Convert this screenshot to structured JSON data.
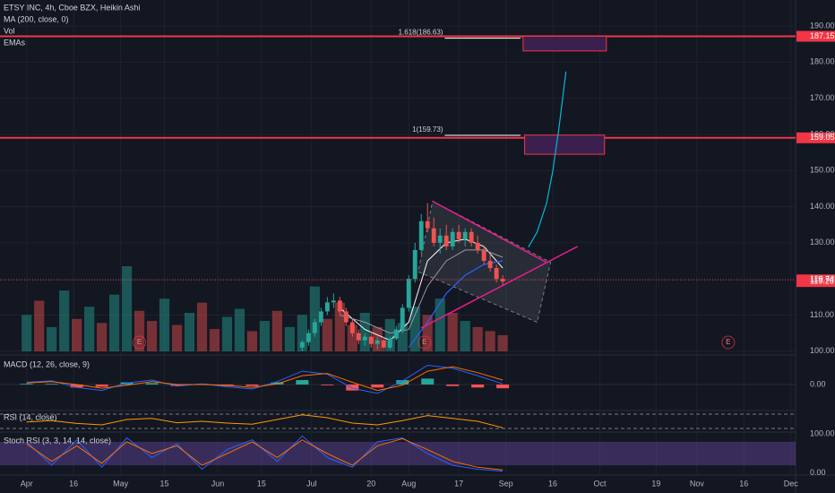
{
  "chart_data": {
    "type": "candlestick",
    "title": "ETSY INC, 4h, Cboe BZX, Heikin Ashi",
    "indicator_labels": [
      "MA (200, close, 0)",
      "Vol",
      "EMAs"
    ],
    "xlim": [
      -8.5,
      245.5
    ],
    "xticks": [
      {
        "value": 0,
        "label": "Apr"
      },
      {
        "value": 15,
        "label": "16"
      },
      {
        "value": 30,
        "label": "May"
      },
      {
        "value": 44,
        "label": "15"
      },
      {
        "value": 61,
        "label": "Jun"
      },
      {
        "value": 75,
        "label": "15"
      },
      {
        "value": 91,
        "label": "Jul"
      },
      {
        "value": 110,
        "label": "20"
      },
      {
        "value": 122,
        "label": "Aug"
      },
      {
        "value": 138,
        "label": "17"
      },
      {
        "value": 153,
        "label": "Sep"
      },
      {
        "value": 168,
        "label": "16"
      },
      {
        "value": 183,
        "label": "Oct"
      },
      {
        "value": 201,
        "label": "19"
      },
      {
        "value": 214,
        "label": "Nov"
      },
      {
        "value": 229,
        "label": "16"
      },
      {
        "value": 244,
        "label": "Dec"
      }
    ],
    "ylim": [
      99.2,
      197.2
    ],
    "yticks": [
      {
        "value": 100,
        "label": "100.00"
      },
      {
        "value": 110,
        "label": "110.00"
      },
      {
        "value": 120,
        "label": "120.00"
      },
      {
        "value": 130,
        "label": "130.00"
      },
      {
        "value": 140,
        "label": "140.00"
      },
      {
        "value": 150,
        "label": "150.00"
      },
      {
        "value": 160,
        "label": "160.00"
      },
      {
        "value": 170,
        "label": "170.00"
      },
      {
        "value": 180,
        "label": "180.00"
      },
      {
        "value": 190,
        "label": "190.00"
      }
    ],
    "grid": true,
    "up_color": "#26a69a",
    "down_color": "#ef5350",
    "candles": {
      "x": [
        88,
        90,
        92,
        94,
        96,
        98,
        100,
        102,
        104,
        106,
        108,
        110,
        112,
        114,
        116,
        118,
        120,
        122,
        124,
        126,
        128,
        130,
        132,
        134,
        136,
        138,
        140,
        142,
        144,
        146,
        148,
        150,
        152
      ],
      "open": [
        101,
        102.5,
        105,
        108,
        111,
        113.5,
        114,
        111,
        108,
        105,
        103,
        104,
        102,
        103,
        101,
        103.5,
        106,
        112,
        120,
        128,
        136,
        134,
        130,
        132,
        129,
        133,
        131,
        133,
        130,
        128,
        125,
        123,
        120
      ],
      "high": [
        103,
        106,
        109,
        112,
        115,
        116,
        115,
        112,
        109,
        106,
        105,
        105,
        104,
        104,
        104,
        107,
        113,
        121,
        130,
        138,
        141,
        137,
        134,
        135,
        134,
        135,
        134,
        134,
        132,
        129,
        127,
        124,
        121
      ],
      "low": [
        100,
        101.5,
        104,
        107,
        110,
        112,
        110,
        107,
        104,
        102,
        101.5,
        101,
        100.5,
        100,
        100.5,
        103,
        105,
        111,
        119,
        127,
        133,
        129,
        127,
        128,
        128,
        130,
        129,
        129,
        127,
        124,
        122,
        119,
        118
      ],
      "close": [
        102.5,
        105,
        108,
        111,
        113.5,
        114,
        111,
        108,
        105,
        103,
        104,
        102,
        103,
        101,
        103.5,
        106,
        112,
        120,
        128,
        136,
        134,
        130,
        132,
        129,
        133,
        131,
        133,
        130,
        128,
        125,
        123,
        120,
        119.3
      ]
    },
    "volume": {
      "x": [
        0,
        4,
        8,
        12,
        16,
        20,
        24,
        28,
        32,
        36,
        40,
        44,
        48,
        52,
        56,
        60,
        64,
        68,
        72,
        76,
        80,
        84,
        88,
        92,
        96,
        100,
        104,
        108,
        112,
        116,
        120,
        124,
        128,
        132,
        136,
        140,
        144,
        148,
        152
      ],
      "values": [
        1.8,
        2.5,
        1.2,
        3.0,
        1.6,
        2.2,
        1.4,
        2.8,
        4.2,
        2.0,
        1.5,
        2.6,
        1.3,
        1.9,
        2.4,
        1.1,
        1.7,
        2.1,
        1.0,
        1.5,
        2.0,
        1.2,
        1.8,
        3.2,
        1.6,
        2.4,
        1.3,
        1.9,
        1.2,
        1.6,
        1.4,
        2.2,
        1.8,
        2.6,
        1.9,
        1.5,
        1.2,
        1.0,
        0.8
      ],
      "up": [
        true,
        false,
        true,
        true,
        false,
        true,
        false,
        true,
        true,
        false,
        false,
        true,
        false,
        true,
        false,
        false,
        true,
        true,
        false,
        true,
        false,
        true,
        true,
        true,
        false,
        false,
        false,
        true,
        false,
        true,
        true,
        true,
        false,
        true,
        false,
        true,
        false,
        false,
        false
      ]
    },
    "ma": {
      "color": "#2962ff",
      "x": [
        122,
        128,
        134,
        140,
        146,
        152
      ],
      "values": [
        101,
        108,
        116,
        121,
        124,
        125
      ]
    },
    "emas": [
      {
        "color": "#ffffff",
        "x": [
          100,
          108,
          116,
          122,
          128,
          134,
          140,
          146,
          152
        ],
        "values": [
          112,
          106,
          103,
          108,
          125,
          130,
          131,
          129,
          123
        ]
      },
      {
        "color": "#9598a1",
        "x": [
          100,
          108,
          116,
          122,
          128,
          134,
          140,
          146,
          152
        ],
        "values": [
          110,
          108,
          105,
          106,
          118,
          125,
          128,
          128,
          126
        ]
      }
    ],
    "earnings": {
      "label": "E",
      "x": [
        36,
        127,
        224
      ]
    },
    "levels": [
      {
        "value": 187.15,
        "color": "#f23645"
      },
      {
        "value": 159.05,
        "color": "#f23645"
      }
    ],
    "price_labels": [
      {
        "value": 187.15,
        "color": "#f23645",
        "line": "none"
      },
      {
        "value": 159.05,
        "color": "#f23645",
        "line": "none"
      },
      {
        "value": 119.74,
        "color": "#f23645",
        "line": "dotted"
      },
      {
        "value": 119.26,
        "color": "#f23645",
        "line": "none"
      }
    ],
    "fib": [
      {
        "label": "1.618(186.63)",
        "value": 186.63,
        "x": [
          133.5,
          157.7
        ]
      },
      {
        "label": "1(159.73)",
        "value": 159.73,
        "x": [
          133.5,
          157.7
        ]
      }
    ],
    "boxes": [
      {
        "x": [
          158.5,
          185.1
        ],
        "y": [
          183.1,
          187.15
        ]
      },
      {
        "x": [
          159,
          184.5
        ],
        "y": [
          154.5,
          159.8
        ]
      }
    ],
    "projection": {
      "color": "#00bcd4",
      "x": [
        160.2,
        163,
        166,
        168,
        170,
        172.2
      ],
      "values": [
        128.8,
        133,
        141,
        150,
        162,
        177.4
      ]
    },
    "trendlines": {
      "color": "#e91e8c",
      "lines": [
        {
          "x": [
            129.6,
            165.9
          ],
          "values": [
            141.5,
            124.6
          ]
        },
        {
          "x": [
            125.9,
            175.9
          ],
          "values": [
            106.4,
            129.0
          ]
        }
      ]
    },
    "channel": {
      "x": [
        129.6,
        167.3,
        163,
        125
      ],
      "values": [
        141.5,
        124.6,
        108,
        122
      ]
    },
    "macd": {
      "title": "MACD (12, 26, close, 9)",
      "ylim": [
        -3.5,
        3.5
      ],
      "yticks": [
        {
          "value": 0,
          "label": "0.00"
        }
      ],
      "x": [
        0,
        8,
        16,
        24,
        32,
        40,
        48,
        56,
        64,
        72,
        80,
        88,
        96,
        104,
        112,
        120,
        128,
        136,
        144,
        152
      ],
      "line": {
        "color": "#2962ff",
        "values": [
          0.3,
          0.5,
          -0.4,
          -0.8,
          0.2,
          0.6,
          -0.2,
          0.1,
          -0.3,
          -0.6,
          0.4,
          1.8,
          1.4,
          -0.5,
          -1.2,
          0.5,
          2.6,
          2.2,
          1.2,
          0.1
        ]
      },
      "signal": {
        "color": "#ff6d00",
        "values": [
          0.2,
          0.4,
          0,
          -0.5,
          -0.1,
          0.4,
          0,
          0,
          -0.1,
          -0.4,
          0.1,
          1.2,
          1.5,
          0.3,
          -0.8,
          -0.1,
          1.8,
          2.4,
          1.6,
          0.6
        ]
      },
      "histogram": {
        "up_color": "#26a69a",
        "down_color": "#ff5252",
        "values": [
          0.1,
          0.1,
          -0.4,
          -0.3,
          0.3,
          0.2,
          -0.2,
          0.1,
          -0.2,
          -0.2,
          0.3,
          0.6,
          -0.1,
          -0.8,
          -0.4,
          0.6,
          0.8,
          -0.2,
          -0.4,
          -0.5
        ]
      }
    },
    "rsi": {
      "title": "RSI (14, close)",
      "ylim": [
        20,
        80
      ],
      "bands": [
        70,
        30
      ],
      "color": "#ff9800",
      "x": [
        0,
        8,
        16,
        24,
        32,
        40,
        48,
        56,
        64,
        72,
        80,
        88,
        96,
        104,
        112,
        120,
        128,
        136,
        144,
        152
      ],
      "values": [
        48,
        52,
        44,
        40,
        55,
        58,
        46,
        50,
        45,
        42,
        55,
        68,
        60,
        45,
        40,
        52,
        66,
        58,
        50,
        32
      ]
    },
    "stoch": {
      "title": "Stoch RSI (3, 3, 14, 14, close)",
      "ylim": [
        -5,
        105
      ],
      "yticks": [
        {
          "value": 100,
          "label": "100.00"
        },
        {
          "value": 0,
          "label": "0.00"
        }
      ],
      "band": [
        20,
        80
      ],
      "x": [
        0,
        8,
        16,
        24,
        32,
        40,
        48,
        56,
        64,
        72,
        80,
        88,
        96,
        104,
        112,
        120,
        128,
        136,
        144,
        152
      ],
      "k": {
        "color": "#2962ff",
        "values": [
          80,
          20,
          85,
          15,
          90,
          40,
          75,
          10,
          60,
          85,
          30,
          95,
          40,
          15,
          80,
          90,
          50,
          20,
          10,
          5
        ]
      },
      "d": {
        "color": "#ff6d00",
        "values": [
          75,
          30,
          70,
          25,
          80,
          50,
          70,
          20,
          50,
          80,
          40,
          85,
          50,
          20,
          70,
          88,
          60,
          30,
          15,
          8
        ]
      }
    }
  }
}
